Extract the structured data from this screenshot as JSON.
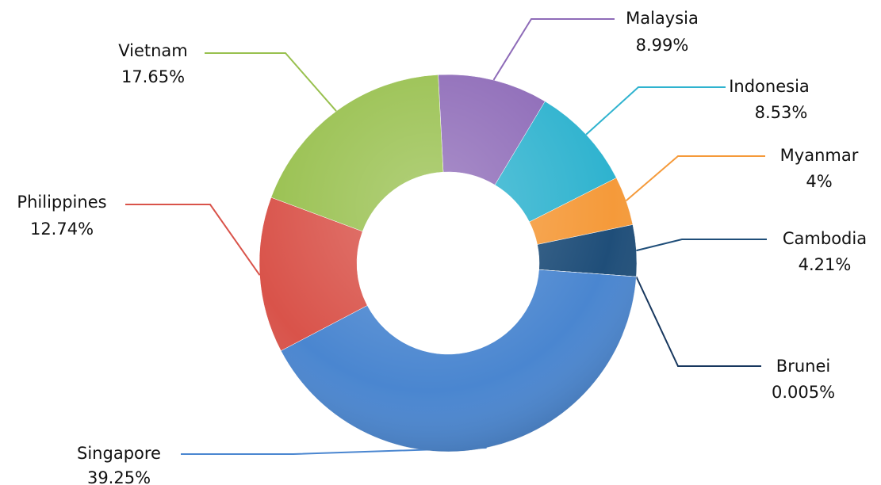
{
  "chart_data": {
    "type": "donut",
    "categories": [
      "Malaysia",
      "Indonesia",
      "Myanmar",
      "Cambodia",
      "Brunei",
      "Singapore",
      "Philippines",
      "Vietnam"
    ],
    "values": [
      8.99,
      8.53,
      4,
      4.21,
      0.005,
      39.25,
      12.74,
      17.65
    ],
    "value_labels": [
      "8.99%",
      "8.53%",
      "4%",
      "4.21%",
      "0.005%",
      "39.25%",
      "12.74%",
      "17.65%"
    ],
    "colors": [
      "#8e6bb8",
      "#2fb3cf",
      "#f59a3a",
      "#1f4e79",
      "#17375e",
      "#4a86d0",
      "#d9534a",
      "#98c04e"
    ]
  }
}
